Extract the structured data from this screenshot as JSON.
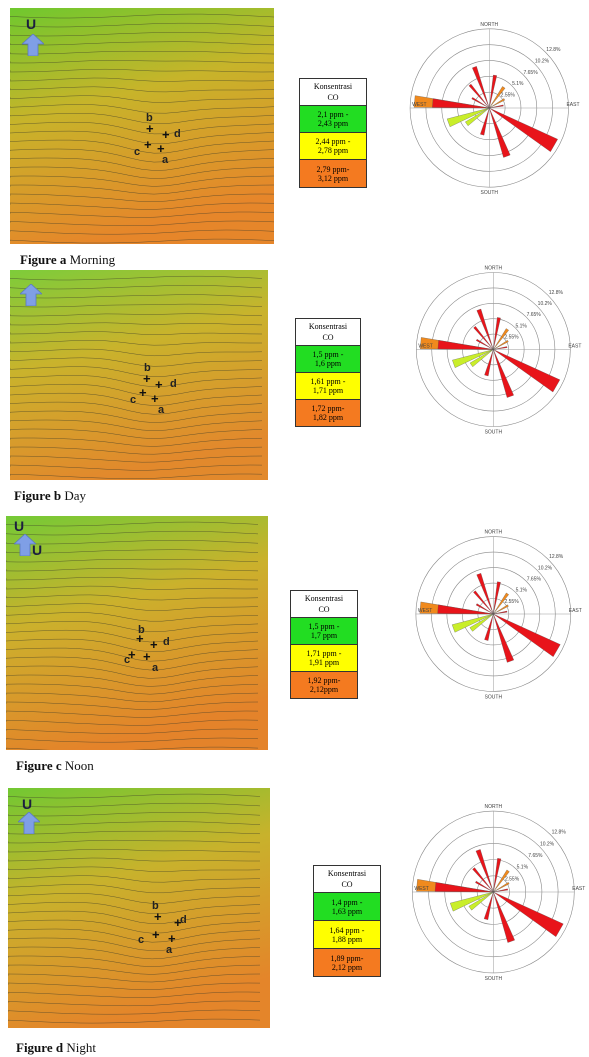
{
  "compass_letter": "U",
  "legend_title": [
    "Konsentrasi",
    "CO"
  ],
  "marker_labels": [
    "a",
    "b",
    "c",
    "d"
  ],
  "rose_labels": {
    "north": "NORTH",
    "south": "SOUTH",
    "east": "EAST",
    "west": "WEST",
    "rings": [
      "2.55%",
      "5.1%",
      "7.65%",
      "10.2%",
      "12.8%"
    ]
  },
  "colors": {
    "green": "#22dd22",
    "yellow": "#ffff00",
    "orange": "#f47a20",
    "rose_red": "#e8141a",
    "rose_orange": "#f08a1e",
    "rose_yellowgreen": "#c9ee2a"
  },
  "panels": [
    {
      "caption_label": "Figure a",
      "caption_text": "Morning",
      "legend": [
        {
          "l1": "2,1 ppm -",
          "l2": "2,43 ppm",
          "color": "green"
        },
        {
          "l1": "2,44 ppm -",
          "l2": "2,78 ppm",
          "color": "yellow"
        },
        {
          "l1": "2,79 ppm-",
          "l2": "3,12 ppm",
          "color": "orange"
        }
      ]
    },
    {
      "caption_label": "Figure b",
      "caption_text": "Day",
      "legend": [
        {
          "l1": "1,5 ppm -",
          "l2": "1,6 ppm",
          "color": "green"
        },
        {
          "l1": "1,61 ppm -",
          "l2": "1,71 ppm",
          "color": "yellow"
        },
        {
          "l1": "1,72 ppm-",
          "l2": "1,82 ppm",
          "color": "orange"
        }
      ]
    },
    {
      "caption_label": "Figure c",
      "caption_text": "Noon",
      "legend": [
        {
          "l1": "1,5 ppm -",
          "l2": "1,7 ppm",
          "color": "green"
        },
        {
          "l1": "1,71 ppm -",
          "l2": "1,91 ppm",
          "color": "yellow"
        },
        {
          "l1": "1,92 ppm-",
          "l2": "2,12ppm",
          "color": "orange"
        }
      ]
    },
    {
      "caption_label": "Figure d",
      "caption_text": "Night",
      "legend": [
        {
          "l1": "1,4 ppm -",
          "l2": "1,63 ppm",
          "color": "green"
        },
        {
          "l1": "1,64 ppm -",
          "l2": "1,88 ppm",
          "color": "yellow"
        },
        {
          "l1": "1,89 ppm-",
          "l2": "2,12 ppm",
          "color": "orange"
        }
      ]
    }
  ]
}
